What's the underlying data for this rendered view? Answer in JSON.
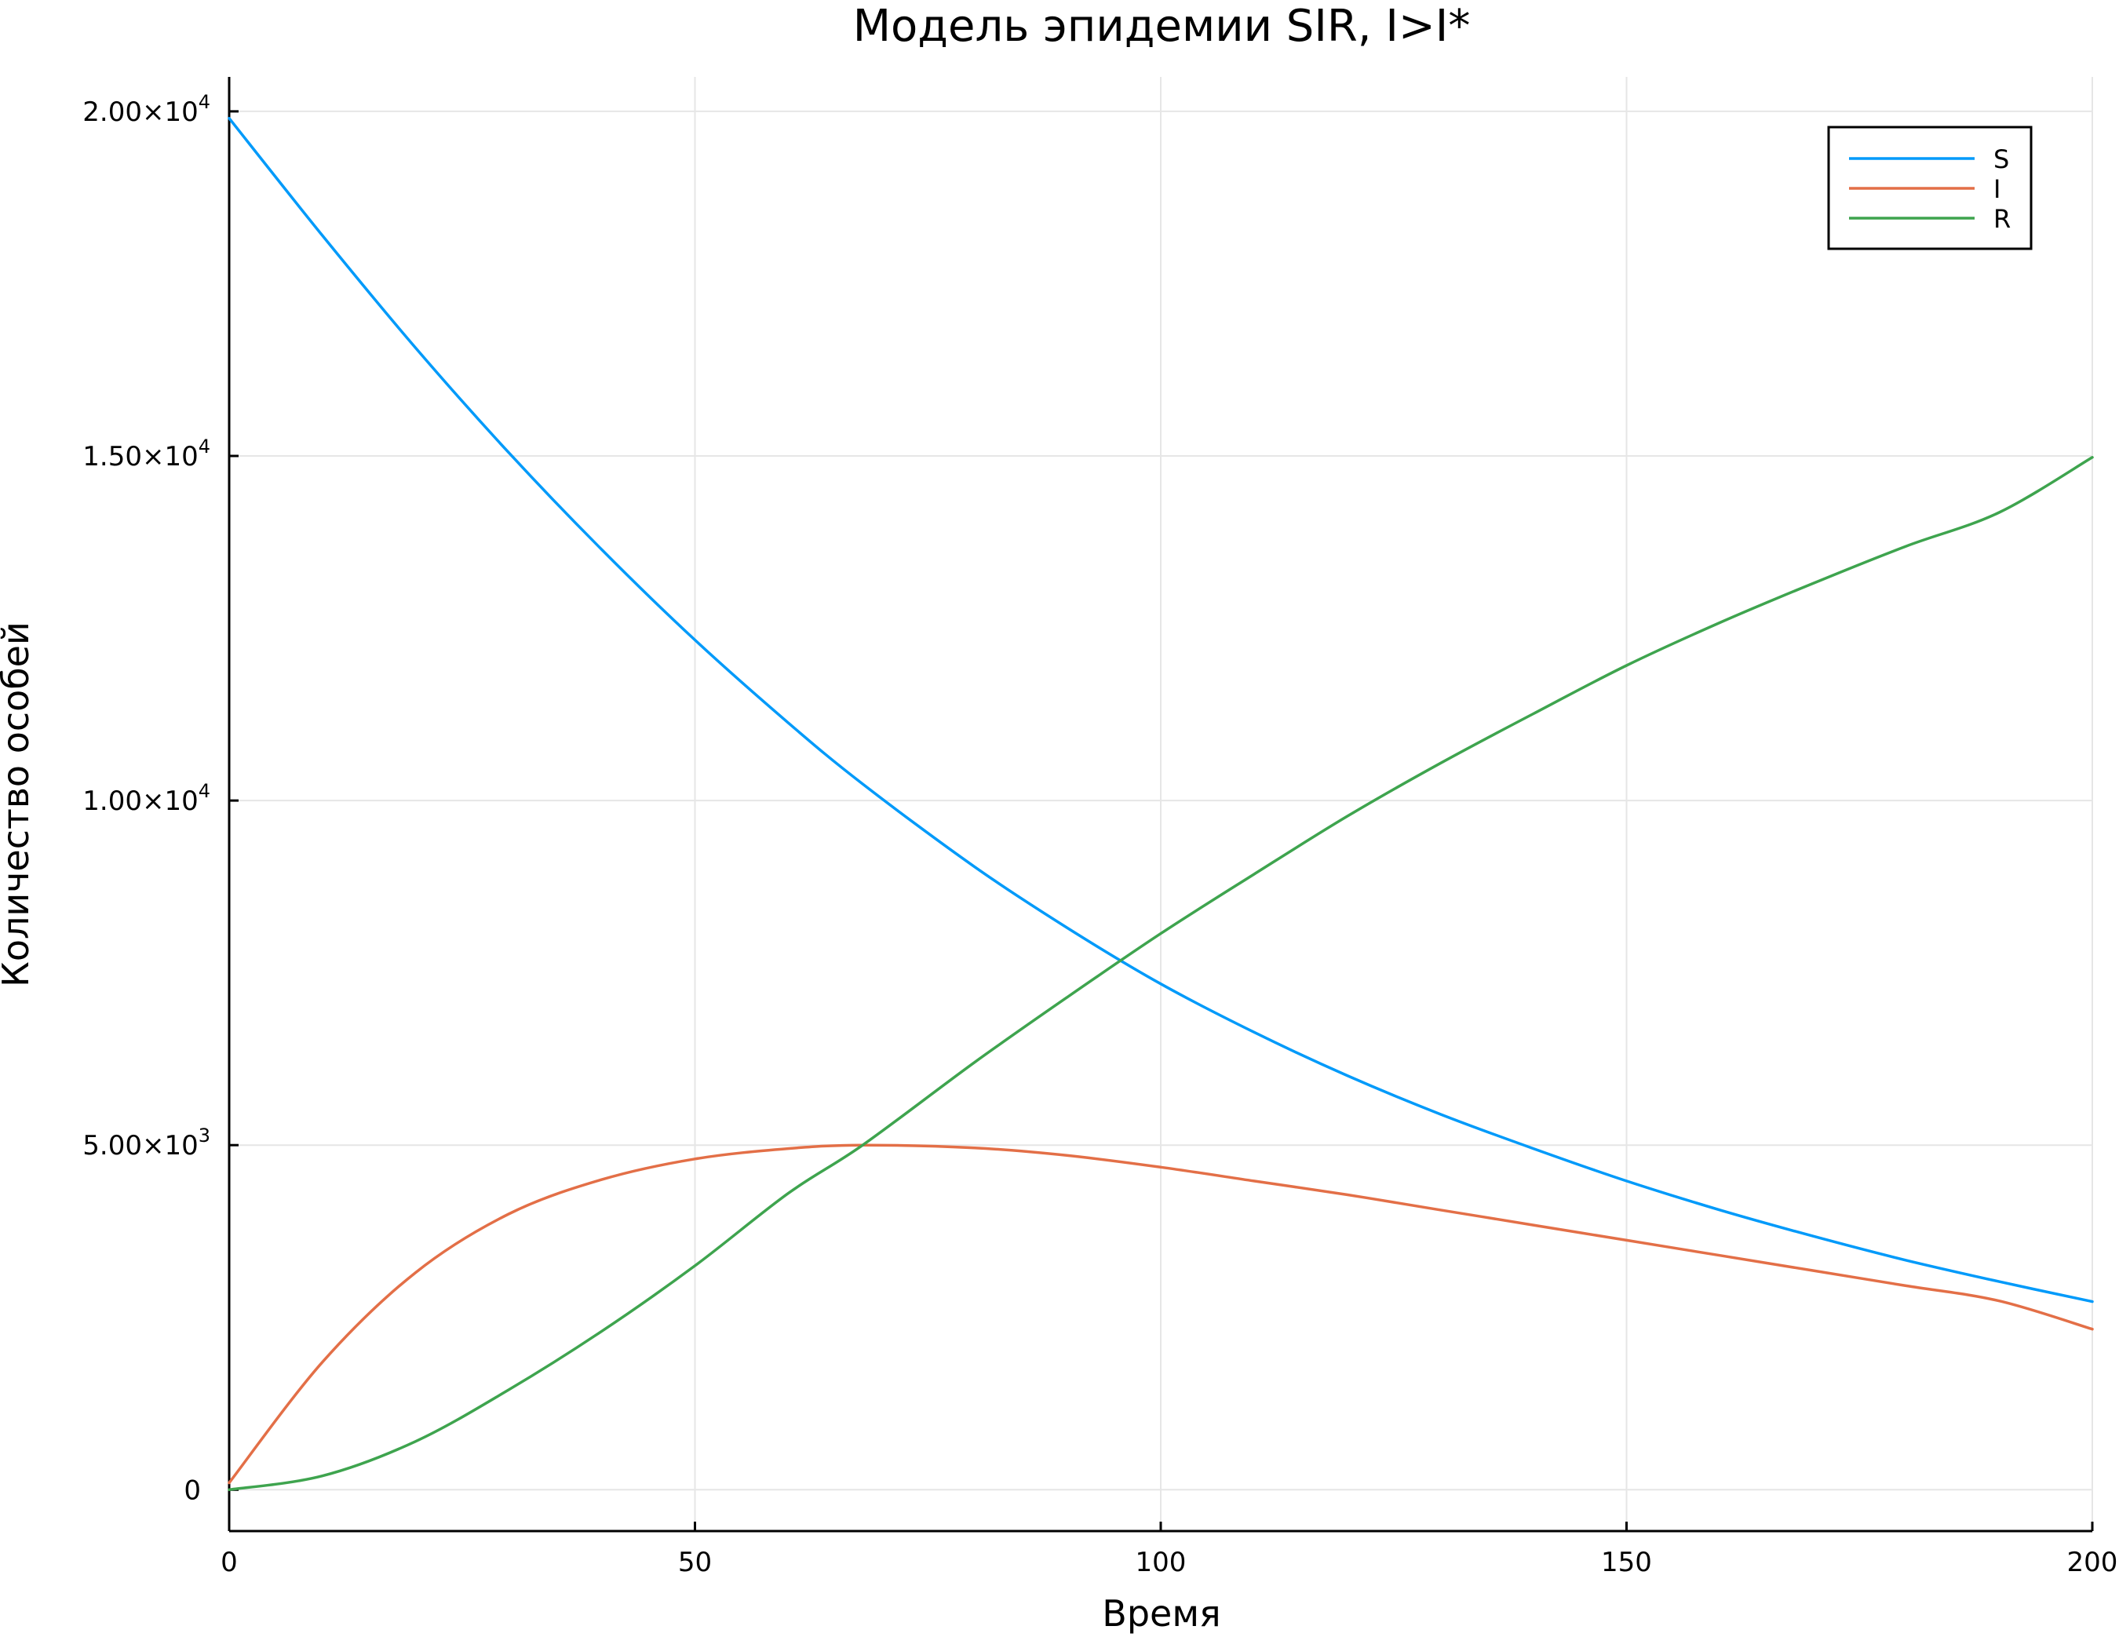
{
  "chart_data": {
    "type": "line",
    "title": "Модель эпидемии SIR, I>I*",
    "xlabel": "Время",
    "ylabel": "Количество особей",
    "xlim": [
      0,
      200
    ],
    "ylim": [
      -600,
      20500
    ],
    "grid": true,
    "legend_position": "top-right",
    "x_ticks": [
      {
        "value": 0,
        "label": "0"
      },
      {
        "value": 50,
        "label": "50"
      },
      {
        "value": 100,
        "label": "100"
      },
      {
        "value": 150,
        "label": "150"
      },
      {
        "value": 200,
        "label": "200"
      }
    ],
    "y_ticks": [
      {
        "value": 0,
        "mantissa": "0",
        "exponent": ""
      },
      {
        "value": 5000,
        "mantissa": "5.00×10",
        "exponent": "3"
      },
      {
        "value": 10000,
        "mantissa": "1.00×10",
        "exponent": "4"
      },
      {
        "value": 15000,
        "mantissa": "1.50×10",
        "exponent": "4"
      },
      {
        "value": 20000,
        "mantissa": "2.00×10",
        "exponent": "4"
      }
    ],
    "x": [
      0,
      10,
      20,
      30,
      40,
      50,
      60,
      68,
      80,
      90,
      100,
      110,
      120,
      130,
      140,
      150,
      160,
      170,
      180,
      190,
      200
    ],
    "series": [
      {
        "name": "S",
        "color": "#009AFA",
        "values": [
          19900,
          18200,
          16570,
          15050,
          13640,
          12330,
          11130,
          10240,
          9040,
          8150,
          7340,
          6640,
          6010,
          5450,
          4950,
          4480,
          4060,
          3680,
          3330,
          3020,
          2730
        ]
      },
      {
        "name": "I",
        "color": "#E36F47",
        "values": [
          100,
          1850,
          3150,
          4000,
          4500,
          4800,
          4950,
          5000,
          4960,
          4850,
          4680,
          4480,
          4280,
          4060,
          3840,
          3620,
          3400,
          3180,
          2960,
          2740,
          2330
        ]
      },
      {
        "name": "R",
        "color": "#3EA44E",
        "values": [
          0,
          200,
          700,
          1450,
          2300,
          3250,
          4300,
          5000,
          6200,
          7150,
          8070,
          8930,
          9770,
          10540,
          11260,
          11960,
          12580,
          13150,
          13690,
          14180,
          14980
        ]
      }
    ]
  }
}
